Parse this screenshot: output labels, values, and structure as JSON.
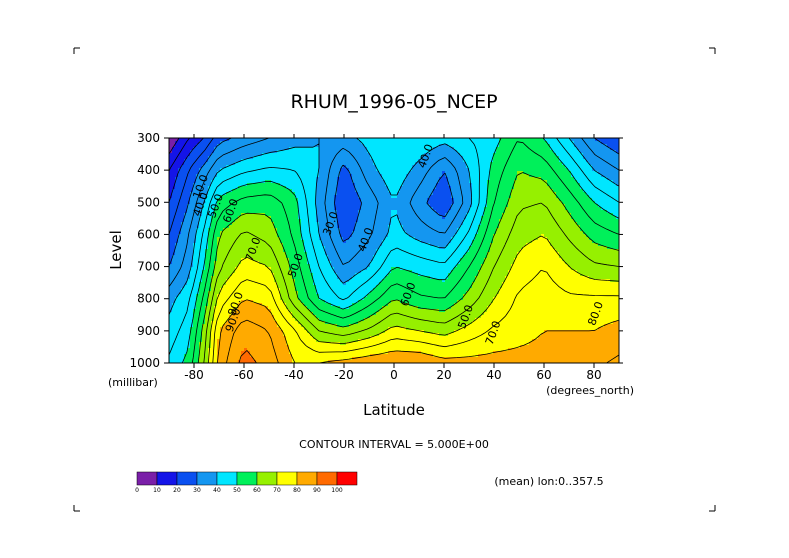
{
  "chart_data": {
    "type": "heatmap",
    "title": "RHUM_1996-05_NCEP",
    "xlabel": "Latitude",
    "ylabel": "Level",
    "x_unit": "(degrees_north)",
    "y_unit": "(millibar)",
    "xlim": [
      -90,
      90
    ],
    "ylim": [
      1000,
      300
    ],
    "x_ticks": [
      "-80",
      "-60",
      "-40",
      "-20",
      "0",
      "20",
      "40",
      "60",
      "80"
    ],
    "x_tick_values": [
      -80,
      -60,
      -40,
      -20,
      0,
      20,
      40,
      60,
      80
    ],
    "y_ticks": [
      "300",
      "400",
      "500",
      "600",
      "700",
      "800",
      "900",
      "1000"
    ],
    "y_tick_values": [
      300,
      400,
      500,
      600,
      700,
      800,
      900,
      1000
    ],
    "contour_interval_text": "CONTOUR INTERVAL = 5.000E+00",
    "mean_text": "(mean) lon:0..357.5",
    "contour_labels": [
      {
        "text": "10.0",
        "lat": -76,
        "lev": 455
      },
      {
        "text": "40.0",
        "lat": -76,
        "lev": 510
      },
      {
        "text": "50.0",
        "lat": -70,
        "lev": 515
      },
      {
        "text": "60.0",
        "lat": -64,
        "lev": 530
      },
      {
        "text": "70.0",
        "lat": -55,
        "lev": 650
      },
      {
        "text": "80.0",
        "lat": -62,
        "lev": 820
      },
      {
        "text": "90.0",
        "lat": -63,
        "lev": 870
      },
      {
        "text": "50.0",
        "lat": -38,
        "lev": 700
      },
      {
        "text": "30.0",
        "lat": -24,
        "lev": 570
      },
      {
        "text": "40.0",
        "lat": -10,
        "lev": 620
      },
      {
        "text": "40.0",
        "lat": 14,
        "lev": 360
      },
      {
        "text": "60.0",
        "lat": 7,
        "lev": 790
      },
      {
        "text": "50.0",
        "lat": 30,
        "lev": 860
      },
      {
        "text": "70.0",
        "lat": 41,
        "lev": 910
      },
      {
        "text": "80.0",
        "lat": 82,
        "lev": 850
      }
    ],
    "colorbar": {
      "levels": [
        "0",
        "10",
        "20",
        "30",
        "40",
        "50",
        "60",
        "70",
        "80",
        "90",
        "100"
      ],
      "colors": [
        "#7a1fa8",
        "#1414e8",
        "#0a50f0",
        "#1496f0",
        "#00e6ff",
        "#00f05a",
        "#96f000",
        "#ffff00",
        "#ffaa00",
        "#ff6a00",
        "#ff0000"
      ]
    },
    "fill_colors": [
      "#7a1fa8",
      "#1414e8",
      "#0a50f0",
      "#1496f0",
      "#00e6ff",
      "#00f05a",
      "#96f000",
      "#ffff00",
      "#ffaa00",
      "#ff6a00",
      "#ff0000"
    ],
    "lats": [
      -90,
      -82,
      -76,
      -70,
      -60,
      -50,
      -40,
      -30,
      -20,
      -10,
      0,
      10,
      20,
      30,
      40,
      50,
      60,
      70,
      80,
      90
    ],
    "levels": [
      300,
      400,
      500,
      600,
      700,
      800,
      900,
      1000
    ],
    "values": [
      [
        5,
        15,
        20,
        28,
        32,
        35,
        38,
        40,
        38,
        42,
        45,
        45,
        42,
        45,
        48,
        55,
        50,
        40,
        30,
        25
      ],
      [
        15,
        25,
        32,
        40,
        44,
        46,
        45,
        40,
        28,
        38,
        44,
        38,
        30,
        40,
        52,
        60,
        58,
        50,
        40,
        35
      ],
      [
        20,
        30,
        40,
        52,
        57,
        58,
        52,
        38,
        25,
        32,
        40,
        32,
        25,
        38,
        55,
        64,
        65,
        58,
        50,
        45
      ],
      [
        25,
        35,
        46,
        60,
        66,
        63,
        54,
        40,
        28,
        34,
        42,
        38,
        35,
        46,
        60,
        68,
        70,
        64,
        58,
        55
      ],
      [
        30,
        38,
        50,
        64,
        72,
        70,
        58,
        45,
        35,
        40,
        50,
        48,
        46,
        55,
        65,
        72,
        75,
        70,
        66,
        65
      ],
      [
        38,
        44,
        56,
        72,
        80,
        78,
        62,
        50,
        44,
        52,
        60,
        56,
        55,
        62,
        70,
        76,
        78,
        76,
        76,
        76
      ],
      [
        42,
        48,
        62,
        80,
        88,
        85,
        76,
        65,
        62,
        66,
        72,
        70,
        68,
        72,
        76,
        78,
        80,
        80,
        80,
        82
      ],
      [
        46,
        52,
        65,
        82,
        92,
        88,
        80,
        80,
        82,
        84,
        85,
        85,
        82,
        82,
        82,
        82,
        82,
        84,
        84,
        86
      ]
    ]
  }
}
